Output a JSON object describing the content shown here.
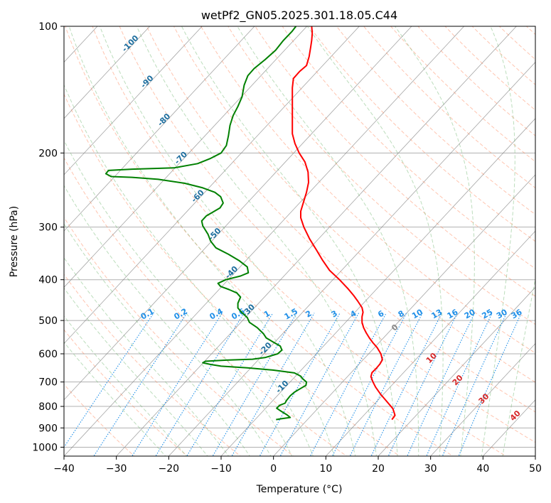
{
  "chart_data": {
    "type": "line",
    "title": "wetPf2_GN05.2025.301.18.05.C44",
    "xlabel": "Temperature (°C)",
    "ylabel": "Pressure (hPa)",
    "xlim": [
      -40,
      50
    ],
    "ylim": [
      1050,
      100
    ],
    "y_scale": "log",
    "grid": true,
    "x_ticks": [
      "−40",
      "−30",
      "−20",
      "−10",
      "0",
      "10",
      "20",
      "30",
      "40",
      "50"
    ],
    "x_tick_values": [
      -40,
      -30,
      -20,
      -10,
      0,
      10,
      20,
      30,
      40,
      50
    ],
    "y_ticks": [
      "100",
      "200",
      "300",
      "400",
      "500",
      "600",
      "700",
      "800",
      "900",
      "1000"
    ],
    "y_tick_values": [
      100,
      200,
      300,
      400,
      500,
      600,
      700,
      800,
      900,
      1000
    ],
    "series": [
      {
        "color": "#ff0000",
        "points": [
          [
            22.6,
            860
          ],
          [
            23.2,
            840
          ],
          [
            22.8,
            810
          ],
          [
            21.5,
            775
          ],
          [
            20.5,
            750
          ],
          [
            19.5,
            720
          ],
          [
            19.0,
            700
          ],
          [
            18.6,
            680
          ],
          [
            18.8,
            665
          ],
          [
            19.6,
            650
          ],
          [
            20.3,
            635
          ],
          [
            20.8,
            620
          ],
          [
            20.5,
            600
          ],
          [
            19.8,
            580
          ],
          [
            19.0,
            565
          ],
          [
            18.3,
            550
          ],
          [
            17.7,
            535
          ],
          [
            17.2,
            520
          ],
          [
            16.9,
            505
          ],
          [
            16.9,
            490
          ],
          [
            17.1,
            478
          ],
          [
            16.9,
            466
          ],
          [
            16.1,
            450
          ],
          [
            15.3,
            436
          ],
          [
            14.2,
            420
          ],
          [
            12.6,
            400
          ],
          [
            10.7,
            380
          ],
          [
            9.4,
            360
          ],
          [
            8.2,
            340
          ],
          [
            6.9,
            320
          ],
          [
            5.8,
            300
          ],
          [
            5.2,
            285
          ],
          [
            5.2,
            275
          ],
          [
            5.8,
            260
          ],
          [
            6.3,
            248
          ],
          [
            6.7,
            235
          ],
          [
            6.6,
            222
          ],
          [
            6.0,
            210
          ],
          [
            4.9,
            200
          ],
          [
            4.1,
            190
          ],
          [
            3.6,
            180
          ],
          [
            3.6,
            165
          ],
          [
            3.6,
            150
          ],
          [
            3.6,
            140
          ],
          [
            3.8,
            133
          ],
          [
            5.0,
            128
          ],
          [
            6.3,
            124
          ],
          [
            6.8,
            118
          ],
          [
            7.1,
            112
          ],
          [
            7.3,
            108
          ],
          [
            7.4,
            104
          ],
          [
            7.3,
            100
          ]
        ]
      },
      {
        "color": "#008000",
        "points": [
          [
            0.5,
            860
          ],
          [
            1.5,
            856
          ],
          [
            3.2,
            850
          ],
          [
            2.6,
            838
          ],
          [
            1.5,
            822
          ],
          [
            0.6,
            808
          ],
          [
            1.2,
            795
          ],
          [
            2.2,
            786
          ],
          [
            2.5,
            774
          ],
          [
            3.2,
            755
          ],
          [
            4.0,
            740
          ],
          [
            5.2,
            725
          ],
          [
            6.2,
            713
          ],
          [
            6.3,
            700
          ],
          [
            5.6,
            688
          ],
          [
            5.2,
            678
          ],
          [
            4.0,
            666
          ],
          [
            0.0,
            656
          ],
          [
            -5.0,
            648
          ],
          [
            -10.0,
            642
          ],
          [
            -12.0,
            636
          ],
          [
            -13.5,
            630
          ],
          [
            -13.0,
            625
          ],
          [
            -9.0,
            621
          ],
          [
            -4.0,
            618
          ],
          [
            -1.5,
            612
          ],
          [
            0.8,
            600
          ],
          [
            1.6,
            588
          ],
          [
            1.3,
            575
          ],
          [
            -0.1,
            562
          ],
          [
            -1.4,
            550
          ],
          [
            -1.9,
            538
          ],
          [
            -3.1,
            520
          ],
          [
            -4.6,
            505
          ],
          [
            -5.0,
            492
          ],
          [
            -6.1,
            478
          ],
          [
            -6.8,
            467
          ],
          [
            -6.8,
            455
          ],
          [
            -6.3,
            440
          ],
          [
            -7.0,
            430
          ],
          [
            -8.5,
            422
          ],
          [
            -10.1,
            415
          ],
          [
            -10.6,
            408
          ],
          [
            -9.1,
            400
          ],
          [
            -6.3,
            392
          ],
          [
            -4.8,
            385
          ],
          [
            -5.0,
            373
          ],
          [
            -6.6,
            360
          ],
          [
            -8.6,
            348
          ],
          [
            -11.0,
            336
          ],
          [
            -12.0,
            324
          ],
          [
            -12.5,
            312
          ],
          [
            -13.5,
            298
          ],
          [
            -13.7,
            290
          ],
          [
            -12.8,
            282
          ],
          [
            -11.5,
            276
          ],
          [
            -10.2,
            270
          ],
          [
            -9.6,
            263
          ],
          [
            -10.1,
            254
          ],
          [
            -11.2,
            248
          ],
          [
            -13.5,
            242
          ],
          [
            -17.0,
            236
          ],
          [
            -22.0,
            231
          ],
          [
            -27.0,
            228.5
          ],
          [
            -31.0,
            227.5
          ],
          [
            -32.0,
            224
          ],
          [
            -31.5,
            220
          ],
          [
            -27.0,
            218.5
          ],
          [
            -19.0,
            217
          ],
          [
            -14.5,
            212
          ],
          [
            -12.0,
            206
          ],
          [
            -10.0,
            200
          ],
          [
            -9.0,
            192
          ],
          [
            -8.6,
            182
          ],
          [
            -8.3,
            172
          ],
          [
            -7.7,
            163
          ],
          [
            -6.8,
            155
          ],
          [
            -6.0,
            147
          ],
          [
            -5.6,
            138
          ],
          [
            -4.9,
            131
          ],
          [
            -3.7,
            126
          ],
          [
            -1.6,
            120
          ],
          [
            0.4,
            114
          ],
          [
            1.9,
            108
          ],
          [
            3.5,
            103
          ],
          [
            4.3,
            100
          ]
        ]
      }
    ],
    "dry_adiabat_labels": [
      "-100",
      "-90",
      "-80",
      "-70",
      "-60",
      "-50",
      "-40",
      "-30",
      "-20",
      "-10"
    ],
    "moist_adiabat_labels": [
      "0",
      "10",
      "20",
      "30",
      "40"
    ],
    "mixing_ratio_labels": [
      "0.1",
      "0.2",
      "0.4",
      "0.6",
      "1",
      "1.5",
      "2",
      "3",
      "4",
      "6",
      "8",
      "10",
      "13",
      "16",
      "20",
      "25",
      "30",
      "36"
    ],
    "mixing_ratio_values": [
      0.1,
      0.2,
      0.4,
      0.6,
      1,
      1.5,
      2,
      3,
      4,
      6,
      8,
      10,
      13,
      16,
      20,
      25,
      30,
      36
    ],
    "colors": {
      "temperature": "#ff0000",
      "dewpoint": "#008000",
      "isotherm": "#7f7f7f",
      "dry_adiabat": "#ff7f50",
      "moist_adiabat": "#6ab36a",
      "mixing_ratio": "#1f8fe8",
      "dry_adiabat_label": "#1f6f9f",
      "moist_adiabat_label": "#d62728",
      "moist_zero_label": "#888888",
      "isobar": "#b0b0b0"
    }
  }
}
